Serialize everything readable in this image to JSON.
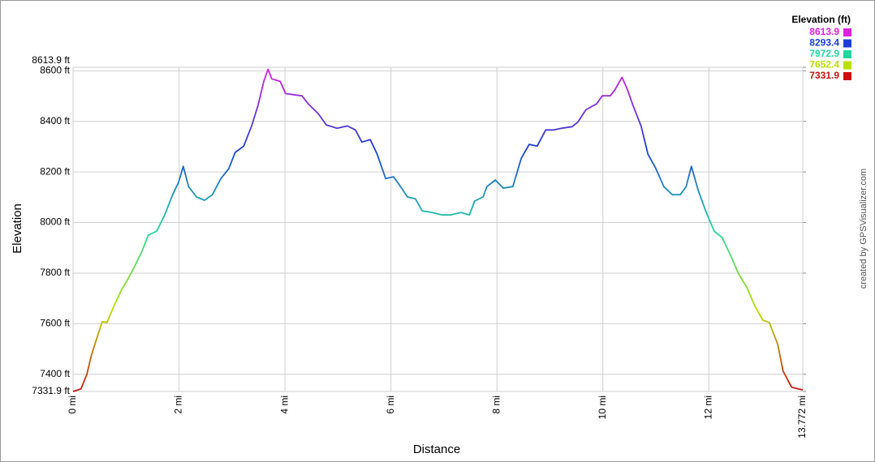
{
  "chart_data": {
    "type": "line",
    "x_label": "Distance",
    "y_label": "Elevation",
    "credit": "created by GPSVisualizer.com",
    "legend": {
      "title": "Elevation (ft)",
      "values": [
        8613.9,
        8293.4,
        7972.9,
        7652.4,
        7331.9
      ],
      "colors": [
        "#e020e0",
        "#1a3fd4",
        "#22d6a0",
        "#b8e000",
        "#cc1010"
      ]
    },
    "grid": true,
    "xlim": [
      0,
      13.772
    ],
    "ylim": [
      7331.9,
      8613.9
    ],
    "xticks": [
      {
        "value": 0,
        "label": "0 mi"
      },
      {
        "value": 2,
        "label": "2 mi"
      },
      {
        "value": 4,
        "label": "4 mi"
      },
      {
        "value": 6,
        "label": "6 mi"
      },
      {
        "value": 8,
        "label": "8 mi"
      },
      {
        "value": 10,
        "label": "10 mi"
      },
      {
        "value": 12,
        "label": "12 mi"
      },
      {
        "value": 13.772,
        "label": "13.772 mi"
      }
    ],
    "yticks": [
      {
        "value": 7331.9,
        "label": "7331.9 ft"
      },
      {
        "value": 7400,
        "label": "7400 ft"
      },
      {
        "value": 7600,
        "label": "7600 ft"
      },
      {
        "value": 7800,
        "label": "7800 ft"
      },
      {
        "value": 8000,
        "label": "8000 ft"
      },
      {
        "value": 8200,
        "label": "8200 ft"
      },
      {
        "value": 8400,
        "label": "8400 ft"
      },
      {
        "value": 8600,
        "label": "8600 ft"
      },
      {
        "value": 8613.9,
        "label": "8613.9 ft"
      }
    ],
    "x": [
      0,
      0.15,
      0.26,
      0.35,
      0.46,
      0.55,
      0.64,
      0.77,
      0.92,
      1.03,
      1.15,
      1.3,
      1.42,
      1.58,
      1.73,
      1.88,
      1.99,
      2.08,
      2.18,
      2.33,
      2.48,
      2.63,
      2.79,
      2.94,
      3.06,
      3.22,
      3.37,
      3.49,
      3.6,
      3.68,
      3.75,
      3.91,
      4.01,
      4.21,
      4.32,
      4.44,
      4.63,
      4.78,
      4.98,
      5.18,
      5.33,
      5.45,
      5.61,
      5.74,
      5.9,
      6.05,
      6.16,
      6.31,
      6.46,
      6.59,
      6.77,
      6.97,
      7.12,
      7.32,
      7.48,
      7.58,
      7.74,
      7.81,
      7.97,
      8.12,
      8.3,
      8.46,
      8.61,
      8.76,
      8.92,
      9.07,
      9.22,
      9.42,
      9.53,
      9.68,
      9.88,
      9.99,
      10.14,
      10.23,
      10.36,
      10.45,
      10.57,
      10.72,
      10.85,
      11.0,
      11.15,
      11.31,
      11.46,
      11.57,
      11.67,
      11.8,
      11.95,
      12.1,
      12.25,
      12.41,
      12.56,
      12.72,
      12.87,
      13.02,
      13.14,
      13.3,
      13.4,
      13.56,
      13.772
    ],
    "series": [
      {
        "name": "Elevation",
        "values": [
          7332,
          7342,
          7400,
          7477,
          7550,
          7608,
          7605,
          7669,
          7736,
          7774,
          7822,
          7886,
          7950,
          7966,
          8030,
          8110,
          8158,
          8222,
          8142,
          8101,
          8088,
          8110,
          8174,
          8213,
          8277,
          8302,
          8382,
          8462,
          8558,
          8606,
          8568,
          8558,
          8510,
          8504,
          8501,
          8469,
          8430,
          8386,
          8373,
          8382,
          8366,
          8318,
          8328,
          8270,
          8174,
          8181,
          8149,
          8101,
          8094,
          8046,
          8040,
          8030,
          8030,
          8040,
          8030,
          8085,
          8101,
          8142,
          8168,
          8136,
          8142,
          8254,
          8309,
          8302,
          8366,
          8366,
          8373,
          8379,
          8398,
          8446,
          8469,
          8501,
          8501,
          8526,
          8574,
          8533,
          8462,
          8382,
          8270,
          8213,
          8142,
          8110,
          8110,
          8142,
          8222,
          8126,
          8040,
          7966,
          7941,
          7870,
          7797,
          7742,
          7669,
          7614,
          7605,
          7518,
          7413,
          7349,
          7338
        ]
      }
    ]
  }
}
